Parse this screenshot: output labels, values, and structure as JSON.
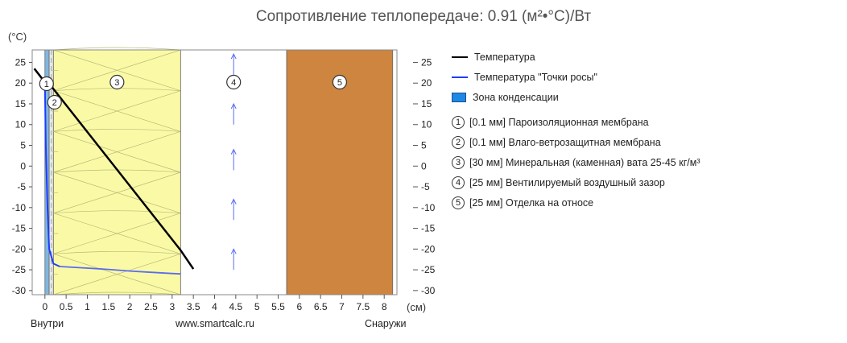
{
  "title": "Сопротивление теплопередаче: 0.91 (м²•°C)/Вт",
  "colors": {
    "insulation": "#fafaa6",
    "membrane1": "#7fb8e0",
    "membrane2": "#e8e8e8",
    "finish": "#cd853f",
    "air": "#ffffff",
    "temperature": "#000000",
    "dew": "#1e3cff",
    "arrow": "#5a6cf0",
    "condensation": "#1e88e5"
  },
  "legend": {
    "temperature": "Температура",
    "dew": "Температура \"Точки росы\"",
    "condensation": "Зона конденсации",
    "layers": [
      {
        "num": "1",
        "text": "[0.1 мм] Пароизоляционная мембрана"
      },
      {
        "num": "2",
        "text": "[0.1 мм] Влаго-ветрозащитная мембрана"
      },
      {
        "num": "3",
        "text": "[30 мм] Минеральная (каменная) вата 25-45 кг/м³"
      },
      {
        "num": "4",
        "text": "[25 мм] Вентилируемый воздушный зазор"
      },
      {
        "num": "5",
        "text": "[25 мм] Отделка на относе"
      }
    ]
  },
  "footer": {
    "inside": "Внутри",
    "site": "www.smartcalc.ru",
    "outside": "Снаружи"
  },
  "chart_data": {
    "type": "line",
    "xlabel": "(см)",
    "ylabel": "(°C)",
    "xlim": [
      -0.3,
      8.3
    ],
    "ylim": [
      -31,
      28
    ],
    "x_ticks": [
      "0",
      "0.5",
      "1",
      "1.5",
      "2",
      "2.5",
      "3",
      "3.5",
      "4",
      "4.5",
      "5",
      "5.5",
      "6",
      "6.5",
      "7",
      "7.5",
      "8"
    ],
    "y_ticks": [
      "25",
      "20",
      "15",
      "10",
      "5",
      "0",
      "-5",
      "-10",
      "-15",
      "-20",
      "-25",
      "-30"
    ],
    "layers": [
      {
        "num": "1",
        "x0": 0.0,
        "x1": 0.1,
        "fill": "membrane1"
      },
      {
        "num": "2",
        "x0": 0.1,
        "x1": 0.2,
        "fill": "membrane2"
      },
      {
        "num": "3",
        "x0": 0.2,
        "x1": 3.2,
        "fill": "insulation"
      },
      {
        "num": "4",
        "x0": 3.2,
        "x1": 5.7,
        "fill": "air"
      },
      {
        "num": "5",
        "x0": 5.7,
        "x1": 8.2,
        "fill": "finish"
      }
    ],
    "series": [
      {
        "name": "Температура",
        "color": "temperature",
        "points": [
          [
            -0.25,
            23.5
          ],
          [
            0.0,
            20.2
          ],
          [
            0.2,
            18.6
          ],
          [
            3.2,
            -20.3
          ],
          [
            3.5,
            -24.8
          ]
        ]
      },
      {
        "name": "Температура \"Точки росы\"",
        "color": "dew",
        "points": [
          [
            0.0,
            19.5
          ],
          [
            0.02,
            5
          ],
          [
            0.06,
            -10
          ],
          [
            0.1,
            -20.0
          ],
          [
            0.2,
            -23.5
          ],
          [
            0.35,
            -24.2
          ]
        ]
      },
      {
        "name": "",
        "color": "arrow",
        "points": [
          [
            0.35,
            -24.2
          ],
          [
            1.0,
            -24.6
          ],
          [
            1.5,
            -24.9
          ],
          [
            2.0,
            -25.3
          ],
          [
            2.5,
            -25.6
          ],
          [
            3.0,
            -25.9
          ],
          [
            3.2,
            -26.0
          ]
        ]
      }
    ],
    "airflow_x": 4.45,
    "airflow_arrows_y": [
      [
        22,
        27
      ],
      [
        10,
        15
      ],
      [
        -1,
        4
      ],
      [
        -13,
        -8
      ],
      [
        -25,
        -20
      ]
    ]
  }
}
